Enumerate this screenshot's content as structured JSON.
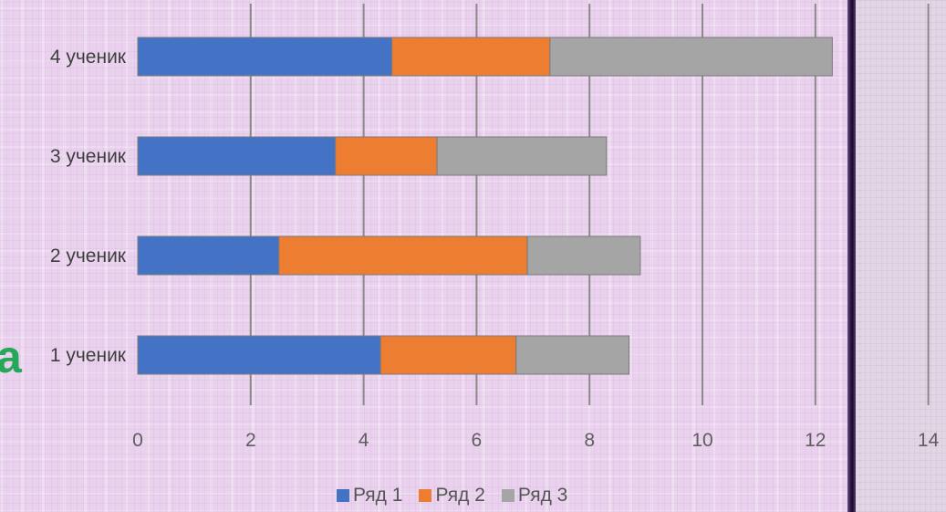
{
  "fragment_text": "а",
  "chart_data": {
    "type": "bar",
    "orientation": "horizontal",
    "stacked": true,
    "categories": [
      "1 ученик",
      "2 ученик",
      "3 ученик",
      "4 ученик"
    ],
    "series": [
      {
        "name": "Ряд 1",
        "color": "#4472c4",
        "values": [
          4.3,
          2.5,
          3.5,
          4.5
        ]
      },
      {
        "name": "Ряд 2",
        "color": "#ed7d31",
        "values": [
          2.4,
          4.4,
          1.8,
          2.8
        ]
      },
      {
        "name": "Ряд 3",
        "color": "#a5a5a5",
        "values": [
          2.0,
          2.0,
          3.0,
          5.0
        ]
      }
    ],
    "xticks": [
      "0",
      "2",
      "4",
      "6",
      "8",
      "10",
      "12",
      "14"
    ],
    "xlim": [
      0,
      14
    ],
    "grid": true,
    "legend_position": "bottom"
  }
}
